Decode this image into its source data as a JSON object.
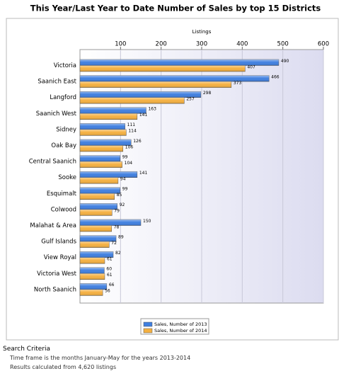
{
  "chart_data": {
    "type": "bar",
    "orientation": "horizontal",
    "title": "This Year/Last Year to Date Number of Sales by top 15 Districts",
    "x_label": "Listings",
    "categories": [
      "Victoria",
      "Saanich East",
      "Langford",
      "Saanich West",
      "Sidney",
      "Oak Bay",
      "Central Saanich",
      "Sooke",
      "Esquimalt",
      "Colwood",
      "Malahat & Area",
      "Gulf Islands",
      "View Royal",
      "Victoria West",
      "North Saanich"
    ],
    "series": [
      {
        "name": "Sales, Number of 2013",
        "color": "#3f7fe0",
        "values": [
          490,
          466,
          298,
          163,
          111,
          126,
          99,
          141,
          99,
          92,
          150,
          89,
          82,
          60,
          66
        ]
      },
      {
        "name": "Sales, Number of 2014",
        "color": "#f5b040",
        "values": [
          407,
          373,
          257,
          141,
          114,
          106,
          104,
          94,
          85,
          79,
          78,
          72,
          61,
          61,
          56
        ]
      }
    ],
    "xlim": [
      0,
      600
    ],
    "xticks": [
      100,
      200,
      300,
      400,
      500,
      600
    ],
    "grid": true
  },
  "search_criteria": {
    "heading": "Search Criteria",
    "lines": [
      "Time frame is the months January-May for the years 2013-2014",
      "Results calculated from 4,620 listings"
    ]
  }
}
